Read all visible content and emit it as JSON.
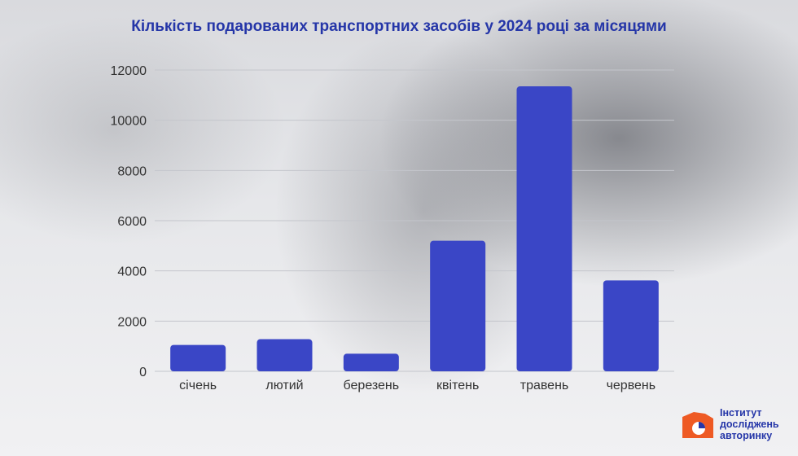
{
  "chart_data": {
    "type": "bar",
    "title": "Кількість подарованих транспортних засобів у 2024 році за місяцями",
    "categories": [
      "січень",
      "лютий",
      "березень",
      "квітень",
      "травень",
      "червень"
    ],
    "values": [
      1050,
      1280,
      700,
      5200,
      11350,
      3620
    ],
    "ylim": [
      0,
      12000
    ],
    "yticks": [
      0,
      2000,
      4000,
      6000,
      8000,
      10000,
      12000
    ],
    "grid": true,
    "bar_color": "#3a46c6"
  },
  "logo": {
    "line1": "Інститут",
    "line2": "досліджень",
    "line3": "авторинку"
  }
}
